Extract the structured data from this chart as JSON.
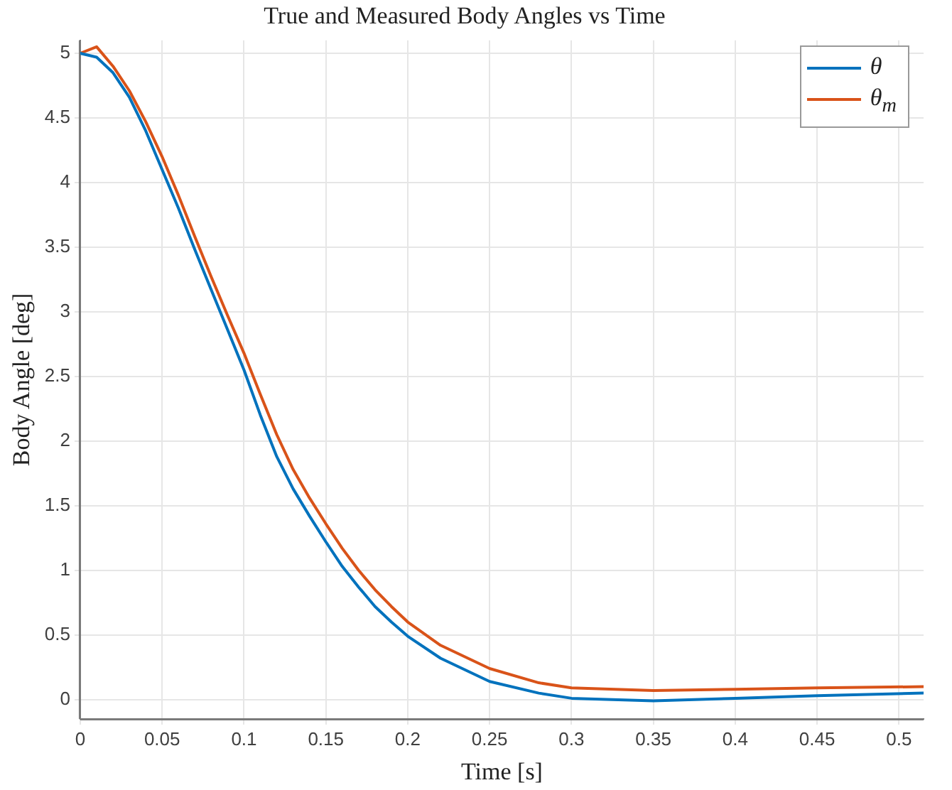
{
  "chart_data": {
    "type": "line",
    "title": "True and Measured Body Angles vs Time",
    "xlabel": "Time [s]",
    "ylabel": "Body Angle [deg]",
    "xlim": [
      0,
      0.515
    ],
    "ylim": [
      -0.15,
      5.1
    ],
    "xticks": [
      0,
      0.05,
      0.1,
      0.15,
      0.2,
      0.25,
      0.3,
      0.35,
      0.4,
      0.45,
      0.5
    ],
    "yticks": [
      0,
      0.5,
      1,
      1.5,
      2,
      2.5,
      3,
      3.5,
      4,
      4.5,
      5
    ],
    "grid": true,
    "legend": "top right",
    "marker": "none",
    "line_style": "solid",
    "x": [
      0,
      0.01,
      0.02,
      0.03,
      0.04,
      0.05,
      0.06,
      0.07,
      0.08,
      0.09,
      0.1,
      0.11,
      0.12,
      0.13,
      0.14,
      0.15,
      0.16,
      0.17,
      0.18,
      0.19,
      0.2,
      0.22,
      0.25,
      0.28,
      0.3,
      0.35,
      0.4,
      0.45,
      0.515
    ],
    "series": [
      {
        "name": "θ",
        "color": "#0072bd",
        "values": [
          5,
          4.97,
          4.85,
          4.66,
          4.4,
          4.1,
          3.8,
          3.48,
          3.17,
          2.86,
          2.55,
          2.2,
          1.88,
          1.63,
          1.42,
          1.22,
          1.03,
          0.87,
          0.72,
          0.6,
          0.49,
          0.32,
          0.14,
          0.05,
          0.01,
          -0.01,
          0.01,
          0.03,
          0.05
        ]
      },
      {
        "name": "θ$_{m}$",
        "color": "#d95319",
        "values": [
          5,
          5.05,
          4.9,
          4.71,
          4.47,
          4.2,
          3.9,
          3.58,
          3.27,
          2.97,
          2.68,
          2.36,
          2.05,
          1.78,
          1.56,
          1.36,
          1.17,
          1.0,
          0.85,
          0.72,
          0.6,
          0.42,
          0.24,
          0.13,
          0.09,
          0.07,
          0.08,
          0.09,
          0.1
        ]
      }
    ]
  }
}
